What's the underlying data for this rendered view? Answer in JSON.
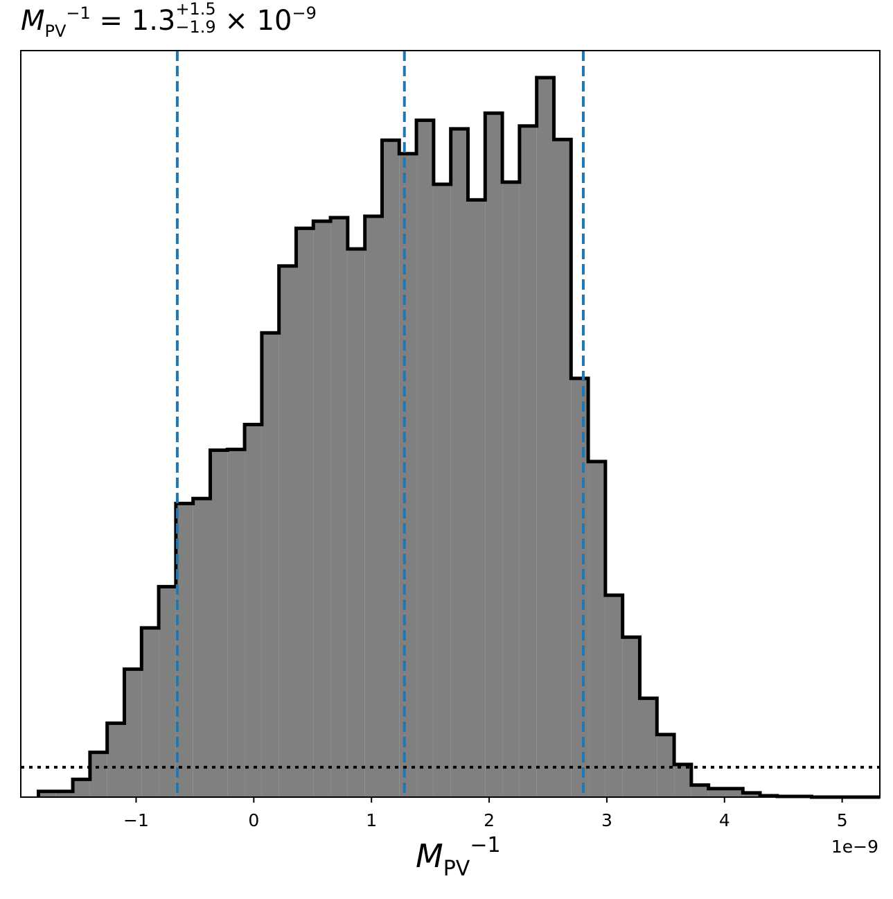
{
  "chart_data": {
    "type": "histogram",
    "title": {
      "symbol": "M",
      "subscript": "PV",
      "superscript": "−1",
      "equals": "=",
      "value": "1.3",
      "upper": "+1.5",
      "lower": "−1.9",
      "multiplier": "× 10",
      "exponent": "−9"
    },
    "xlabel": {
      "symbol": "M",
      "subscript": "PV",
      "superscript": "−1"
    },
    "x_offset_text": "1e−9",
    "x_unit_scale": 1e-09,
    "xlim": [
      -1.98,
      5.32
    ],
    "ylim": [
      0,
      1.05
    ],
    "y_ticks_shown": false,
    "x_ticks": [
      -1,
      0,
      1,
      2,
      3,
      4,
      5
    ],
    "x_tick_labels": [
      "−1",
      "0",
      "1",
      "2",
      "3",
      "4",
      "5"
    ],
    "bin_edges": [
      -1.83,
      -1.684,
      -1.538,
      -1.392,
      -1.246,
      -1.1,
      -0.954,
      -0.808,
      -0.662,
      -0.516,
      -0.37,
      -0.224,
      -0.078,
      0.068,
      0.214,
      0.36,
      0.506,
      0.652,
      0.798,
      0.944,
      1.09,
      1.236,
      1.382,
      1.528,
      1.674,
      1.82,
      1.966,
      2.112,
      2.258,
      2.404,
      2.55,
      2.696,
      2.842,
      2.988,
      3.134,
      3.28,
      3.426,
      3.572,
      3.718,
      3.864,
      4.01,
      4.156,
      4.302,
      4.448,
      4.594,
      4.74,
      4.886,
      5.032,
      5.178,
      5.324
    ],
    "counts": [
      0.008,
      0.008,
      0.025,
      0.063,
      0.104,
      0.18,
      0.238,
      0.296,
      0.413,
      0.42,
      0.488,
      0.489,
      0.524,
      0.653,
      0.747,
      0.8,
      0.81,
      0.815,
      0.771,
      0.817,
      0.924,
      0.905,
      0.952,
      0.862,
      0.94,
      0.84,
      0.962,
      0.865,
      0.944,
      1.012,
      0.925,
      0.589,
      0.472,
      0.284,
      0.225,
      0.139,
      0.088,
      0.046,
      0.017,
      0.012,
      0.012,
      0.006,
      0.002,
      0.001,
      0.001,
      0.0,
      0.0,
      0.0,
      0.0
    ],
    "quantile_lines": [
      -0.65,
      1.28,
      2.8
    ],
    "threshold_level": 0.042,
    "colors": {
      "fill": "#808080",
      "edge": "#000000",
      "quantile": "#1f77b4",
      "threshold": "#000000"
    }
  }
}
